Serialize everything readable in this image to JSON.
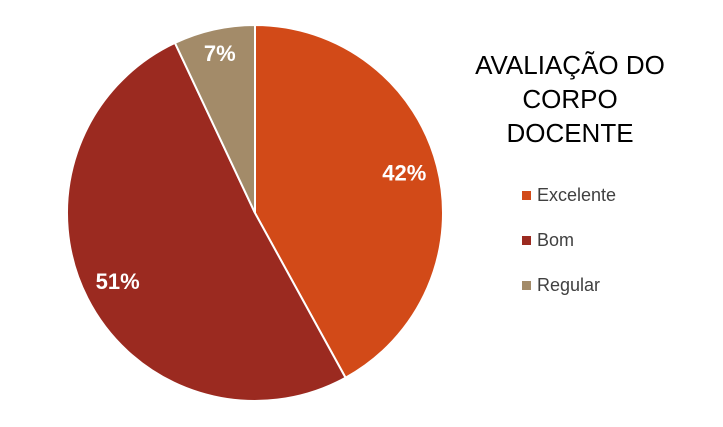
{
  "chart_data": {
    "type": "pie",
    "title_lines": [
      "AVALIAÇÃO DO",
      "CORPO DOCENTE"
    ],
    "categories": [
      "Excelente",
      "Bom",
      "Regular"
    ],
    "values": [
      42,
      51,
      7
    ],
    "labels": [
      "42%",
      "51%",
      "7%"
    ],
    "colors": [
      "#d24a18",
      "#9b2a20",
      "#a38b69"
    ],
    "legend_position": "right"
  }
}
